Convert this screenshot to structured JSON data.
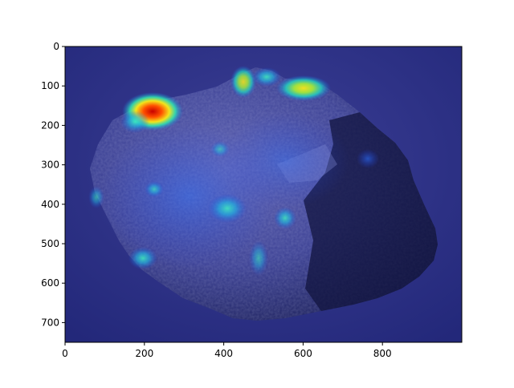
{
  "figure": {
    "x_ticks": [
      "0",
      "200",
      "400",
      "600",
      "800"
    ],
    "y_ticks": [
      "0",
      "100",
      "200",
      "300",
      "400",
      "500",
      "600",
      "700"
    ],
    "x_range": [
      0,
      1000
    ],
    "y_range": [
      0,
      750
    ]
  },
  "image": {
    "subject": "rock-specimen",
    "overlay": "saliency-heatmap",
    "colormap": "jet",
    "colors": {
      "background": "#2a2f7a",
      "rock": "#3a3f8a",
      "hot": "#d40000",
      "warm": "#f0e020",
      "cool": "#20d0c0"
    }
  }
}
